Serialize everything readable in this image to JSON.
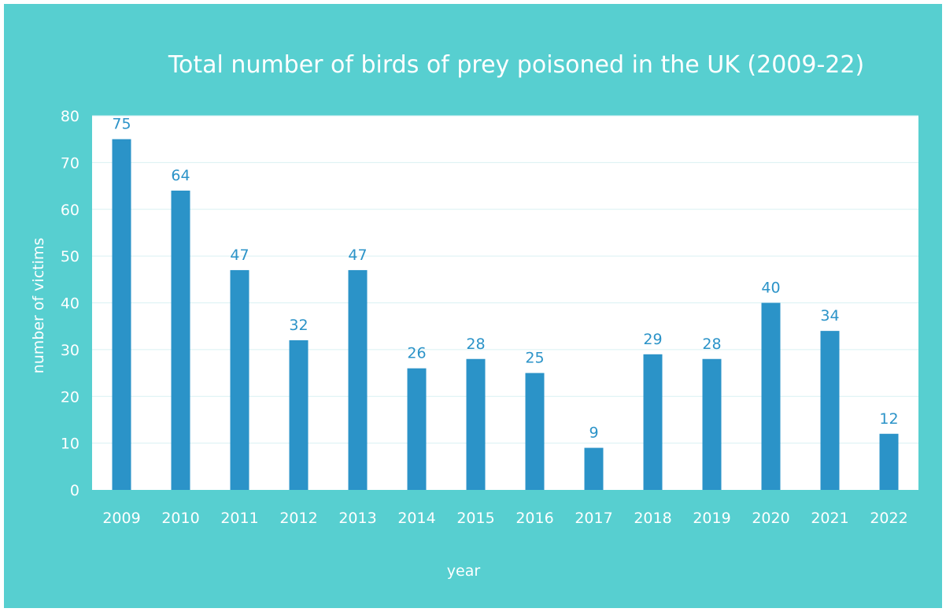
{
  "chart_data": {
    "type": "bar",
    "title": "Total number of birds of prey poisoned in the UK (2009-22)",
    "xlabel": "year",
    "ylabel": "number of victims",
    "categories": [
      "2009",
      "2010",
      "2011",
      "2012",
      "2013",
      "2014",
      "2015",
      "2016",
      "2017",
      "2018",
      "2019",
      "2020",
      "2021",
      "2022"
    ],
    "values": [
      75,
      64,
      47,
      32,
      47,
      26,
      28,
      25,
      9,
      29,
      28,
      40,
      34,
      12
    ],
    "ylim": [
      0,
      80
    ],
    "yticks": [
      0,
      10,
      20,
      30,
      40,
      50,
      60,
      70,
      80
    ],
    "grid": true,
    "legend": "none",
    "colors": {
      "background": "#57cfd0",
      "plot_area": "#ffffff",
      "bar": "#2b93c8",
      "data_label": "#2b93c8",
      "axis_text": "#ffffff",
      "gridline": "#d9f1f3"
    }
  }
}
